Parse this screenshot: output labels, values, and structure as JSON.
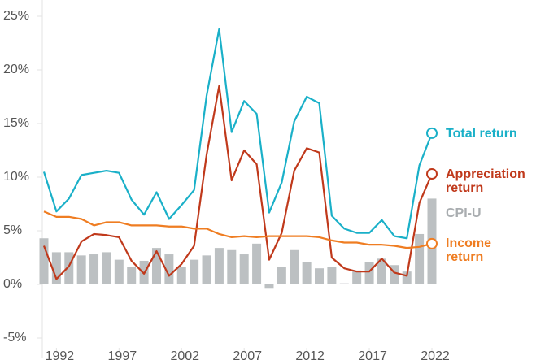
{
  "chart_data": {
    "type": "combo",
    "x": [
      1991,
      1992,
      1993,
      1994,
      1995,
      1996,
      1997,
      1998,
      1999,
      2000,
      2001,
      2002,
      2003,
      2004,
      2005,
      2006,
      2007,
      2008,
      2009,
      2010,
      2011,
      2012,
      2013,
      2014,
      2015,
      2016,
      2017,
      2018,
      2019,
      2020,
      2021,
      2022
    ],
    "xlim": [
      1991,
      2022
    ],
    "xticks": [
      1992,
      1997,
      2002,
      2007,
      2012,
      2017,
      2022
    ],
    "ylim": [
      -5,
      25
    ],
    "yticks": [
      {
        "value": -5,
        "label": "-5%"
      },
      {
        "value": 0,
        "label": "0%"
      },
      {
        "value": 5,
        "label": "5%"
      },
      {
        "value": 10,
        "label": "10%"
      },
      {
        "value": 15,
        "label": "15%"
      },
      {
        "value": 20,
        "label": "20%"
      },
      {
        "value": 25,
        "label": "25%"
      }
    ],
    "grid": false,
    "series": [
      {
        "name": "CPI-U",
        "type": "bar",
        "color": "#bcc0c2",
        "values": [
          4.3,
          3.0,
          3.0,
          2.7,
          2.8,
          3.0,
          2.3,
          1.6,
          2.2,
          3.4,
          2.8,
          1.6,
          2.3,
          2.7,
          3.4,
          3.2,
          2.8,
          3.8,
          -0.4,
          1.6,
          3.2,
          2.1,
          1.5,
          1.6,
          0.1,
          1.3,
          2.1,
          2.4,
          1.8,
          1.2,
          4.7,
          8.0
        ]
      },
      {
        "name": "Total return",
        "type": "line",
        "color": "#1ab0c8",
        "values": [
          10.5,
          6.8,
          8.0,
          10.2,
          10.4,
          10.6,
          10.4,
          7.9,
          6.5,
          8.6,
          6.1,
          7.4,
          8.8,
          17.6,
          23.8,
          14.2,
          17.1,
          15.9,
          6.7,
          9.5,
          15.2,
          17.5,
          16.9,
          6.4,
          5.2,
          4.8,
          4.8,
          6.0,
          4.5,
          4.3,
          11.1,
          14.1
        ]
      },
      {
        "name": "Appreciation return",
        "type": "line",
        "color": "#c0391b",
        "values": [
          3.6,
          0.5,
          1.7,
          4.0,
          4.7,
          4.6,
          4.4,
          2.2,
          1.0,
          3.1,
          0.8,
          1.9,
          3.6,
          12.1,
          18.5,
          9.7,
          12.5,
          11.2,
          2.3,
          4.8,
          10.6,
          12.7,
          12.3,
          2.5,
          1.5,
          1.2,
          1.2,
          2.4,
          1.1,
          0.8,
          7.6,
          10.3
        ]
      },
      {
        "name": "Income return",
        "type": "line",
        "color": "#ef7d22",
        "values": [
          6.8,
          6.3,
          6.3,
          6.1,
          5.5,
          5.8,
          5.8,
          5.5,
          5.5,
          5.5,
          5.4,
          5.4,
          5.2,
          5.2,
          4.7,
          4.4,
          4.5,
          4.4,
          4.5,
          4.5,
          4.5,
          4.5,
          4.4,
          4.1,
          3.9,
          3.9,
          3.7,
          3.7,
          3.6,
          3.4,
          3.5,
          3.8
        ]
      }
    ]
  }
}
